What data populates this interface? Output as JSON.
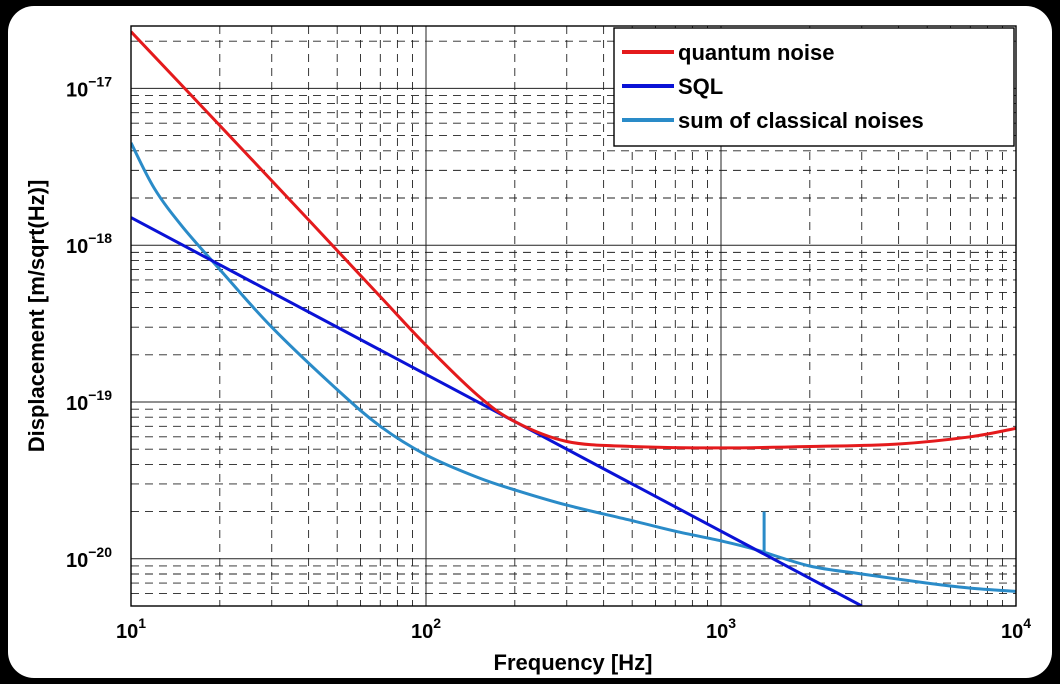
{
  "chart_data": {
    "type": "line",
    "title": "",
    "xlabel": "Frequency [Hz]",
    "ylabel": "Displacement [m/sqrt(Hz)]",
    "xscale": "log",
    "yscale": "log",
    "xlim": [
      10,
      10000
    ],
    "ylim": [
      5e-21,
      2.5e-17
    ],
    "grid": true,
    "legend_position": "top-right",
    "x_ticks": [
      {
        "base": "10",
        "exp": "1"
      },
      {
        "base": "10",
        "exp": "2"
      },
      {
        "base": "10",
        "exp": "3"
      },
      {
        "base": "10",
        "exp": "4"
      }
    ],
    "y_ticks": [
      {
        "base": "10",
        "exp": "−17"
      },
      {
        "base": "10",
        "exp": "−18"
      },
      {
        "base": "10",
        "exp": "−19"
      },
      {
        "base": "10",
        "exp": "−20"
      }
    ],
    "series": [
      {
        "name": "quantum noise",
        "color": "#e41a1c",
        "points": [
          [
            10,
            2.3e-17
          ],
          [
            20,
            5.8e-18
          ],
          [
            40,
            1.45e-18
          ],
          [
            70,
            4.7e-19
          ],
          [
            100,
            2.3e-19
          ],
          [
            150,
            1.1e-19
          ],
          [
            200,
            7.5e-20
          ],
          [
            300,
            5.6e-20
          ],
          [
            500,
            5.2e-20
          ],
          [
            1000,
            5.1e-20
          ],
          [
            2000,
            5.2e-20
          ],
          [
            4000,
            5.4e-20
          ],
          [
            7000,
            6e-20
          ],
          [
            10000,
            6.8e-20
          ]
        ]
      },
      {
        "name": "SQL",
        "color": "#0a12d6",
        "points": [
          [
            10,
            1.5e-18
          ],
          [
            3000,
            5e-21
          ]
        ]
      },
      {
        "name": "sum of classical noises",
        "color": "#2a8bc8",
        "points": [
          [
            10,
            4.5e-18
          ],
          [
            12,
            2.3e-18
          ],
          [
            15,
            1.3e-18
          ],
          [
            20,
            7e-19
          ],
          [
            30,
            3e-19
          ],
          [
            50,
            1.2e-19
          ],
          [
            70,
            7e-20
          ],
          [
            100,
            4.6e-20
          ],
          [
            150,
            3.3e-20
          ],
          [
            200,
            2.75e-20
          ],
          [
            300,
            2.2e-20
          ],
          [
            500,
            1.75e-20
          ],
          [
            700,
            1.5e-20
          ],
          [
            1000,
            1.3e-20
          ],
          [
            1300,
            1.15e-20
          ],
          [
            2000,
            9e-21
          ],
          [
            3000,
            8e-21
          ],
          [
            5000,
            7e-21
          ],
          [
            7000,
            6.5e-21
          ],
          [
            10000,
            6.2e-21
          ]
        ],
        "spike": {
          "x": 1400,
          "from": 1.12e-20,
          "to": 2e-20
        }
      }
    ]
  }
}
